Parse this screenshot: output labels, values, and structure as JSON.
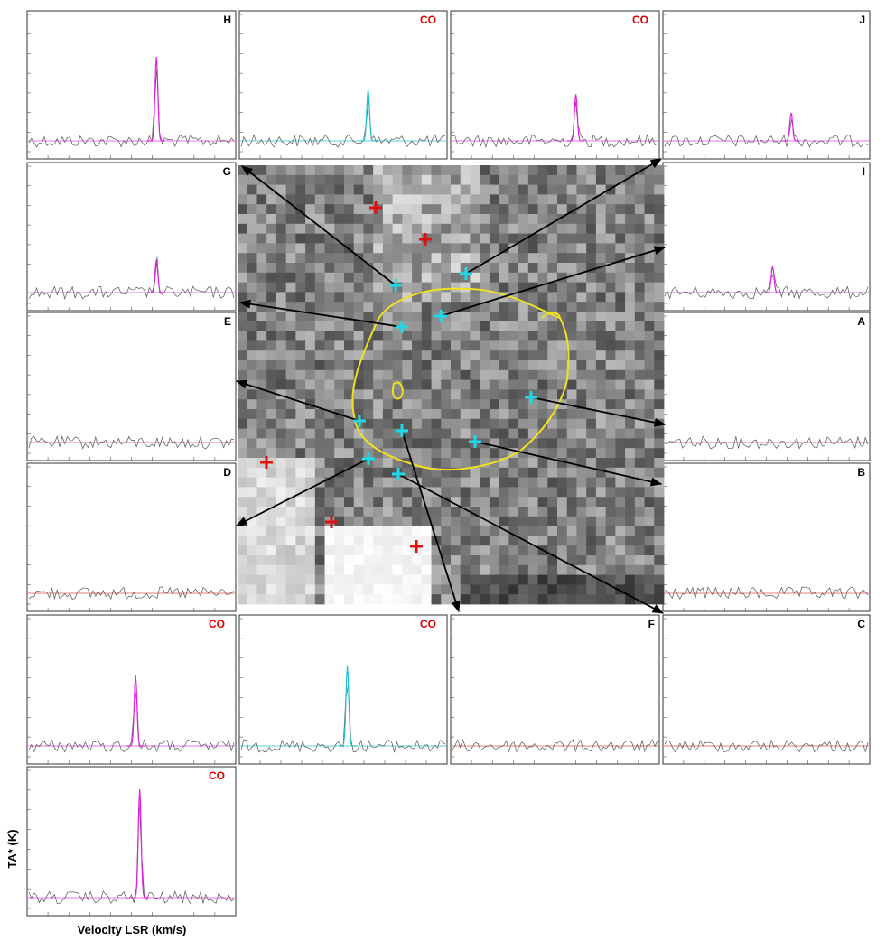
{
  "figure": {
    "ylabel": "TA* (K)",
    "xlabel": "Velocity LSR (km/s)"
  },
  "colors": {
    "spectrum": "#555555",
    "hcn_fit": "#e020e0",
    "co_fit": "#20c0d0",
    "baseline_magenta": "#e040e0",
    "baseline_red": "#e05050",
    "co_label": "#e00000",
    "contour": "#f0e020",
    "cross_cyan": "#20d8e8",
    "cross_red": "#e01010",
    "arrow": "#000000"
  },
  "chart_data": [
    {
      "panel": "H",
      "type": "line",
      "label": "H",
      "peak": 0.9,
      "fit": "magenta",
      "baseline": "magenta"
    },
    {
      "panel": "CO-top-1",
      "type": "line",
      "label": "CO",
      "peak": 0.55,
      "fit": "cyan",
      "baseline": "cyan"
    },
    {
      "panel": "CO-top-2",
      "type": "line",
      "label": "CO",
      "peak": 0.5,
      "fit": "magenta",
      "baseline": "magenta"
    },
    {
      "panel": "J",
      "type": "line",
      "label": "J",
      "peak": 0.3,
      "fit": "magenta",
      "baseline": "magenta"
    },
    {
      "panel": "G",
      "type": "line",
      "label": "G",
      "peak": 0.35,
      "fit": "magenta",
      "baseline": "magenta"
    },
    {
      "panel": "I",
      "type": "line",
      "label": "I",
      "peak": 0.28,
      "fit": "magenta",
      "baseline": "magenta"
    },
    {
      "panel": "E",
      "type": "line",
      "label": "E",
      "peak": 0,
      "fit": "none",
      "baseline": "red"
    },
    {
      "panel": "A",
      "type": "line",
      "label": "A",
      "peak": 0,
      "fit": "none",
      "baseline": "red"
    },
    {
      "panel": "D",
      "type": "line",
      "label": "D",
      "peak": 0,
      "fit": "none",
      "baseline": "red"
    },
    {
      "panel": "B",
      "type": "line",
      "label": "B",
      "peak": 0,
      "fit": "none",
      "baseline": "red"
    },
    {
      "panel": "CO-bot-1",
      "type": "line",
      "label": "CO",
      "peak": 0.75,
      "fit": "magenta",
      "baseline": "magenta"
    },
    {
      "panel": "CO-bot-2",
      "type": "line",
      "label": "CO",
      "peak": 0.85,
      "fit": "cyan",
      "baseline": "cyan"
    },
    {
      "panel": "F",
      "type": "line",
      "label": "F",
      "peak": 0,
      "fit": "none",
      "baseline": "red"
    },
    {
      "panel": "C",
      "type": "line",
      "label": "C",
      "peak": 0,
      "fit": "none",
      "baseline": "red"
    },
    {
      "panel": "CO-bot-3",
      "type": "line",
      "label": "CO",
      "peak": 1.15,
      "fit": "magenta",
      "baseline": "magenta"
    }
  ],
  "image": {
    "cyan_crosses": 10,
    "red_crosses": 5
  }
}
